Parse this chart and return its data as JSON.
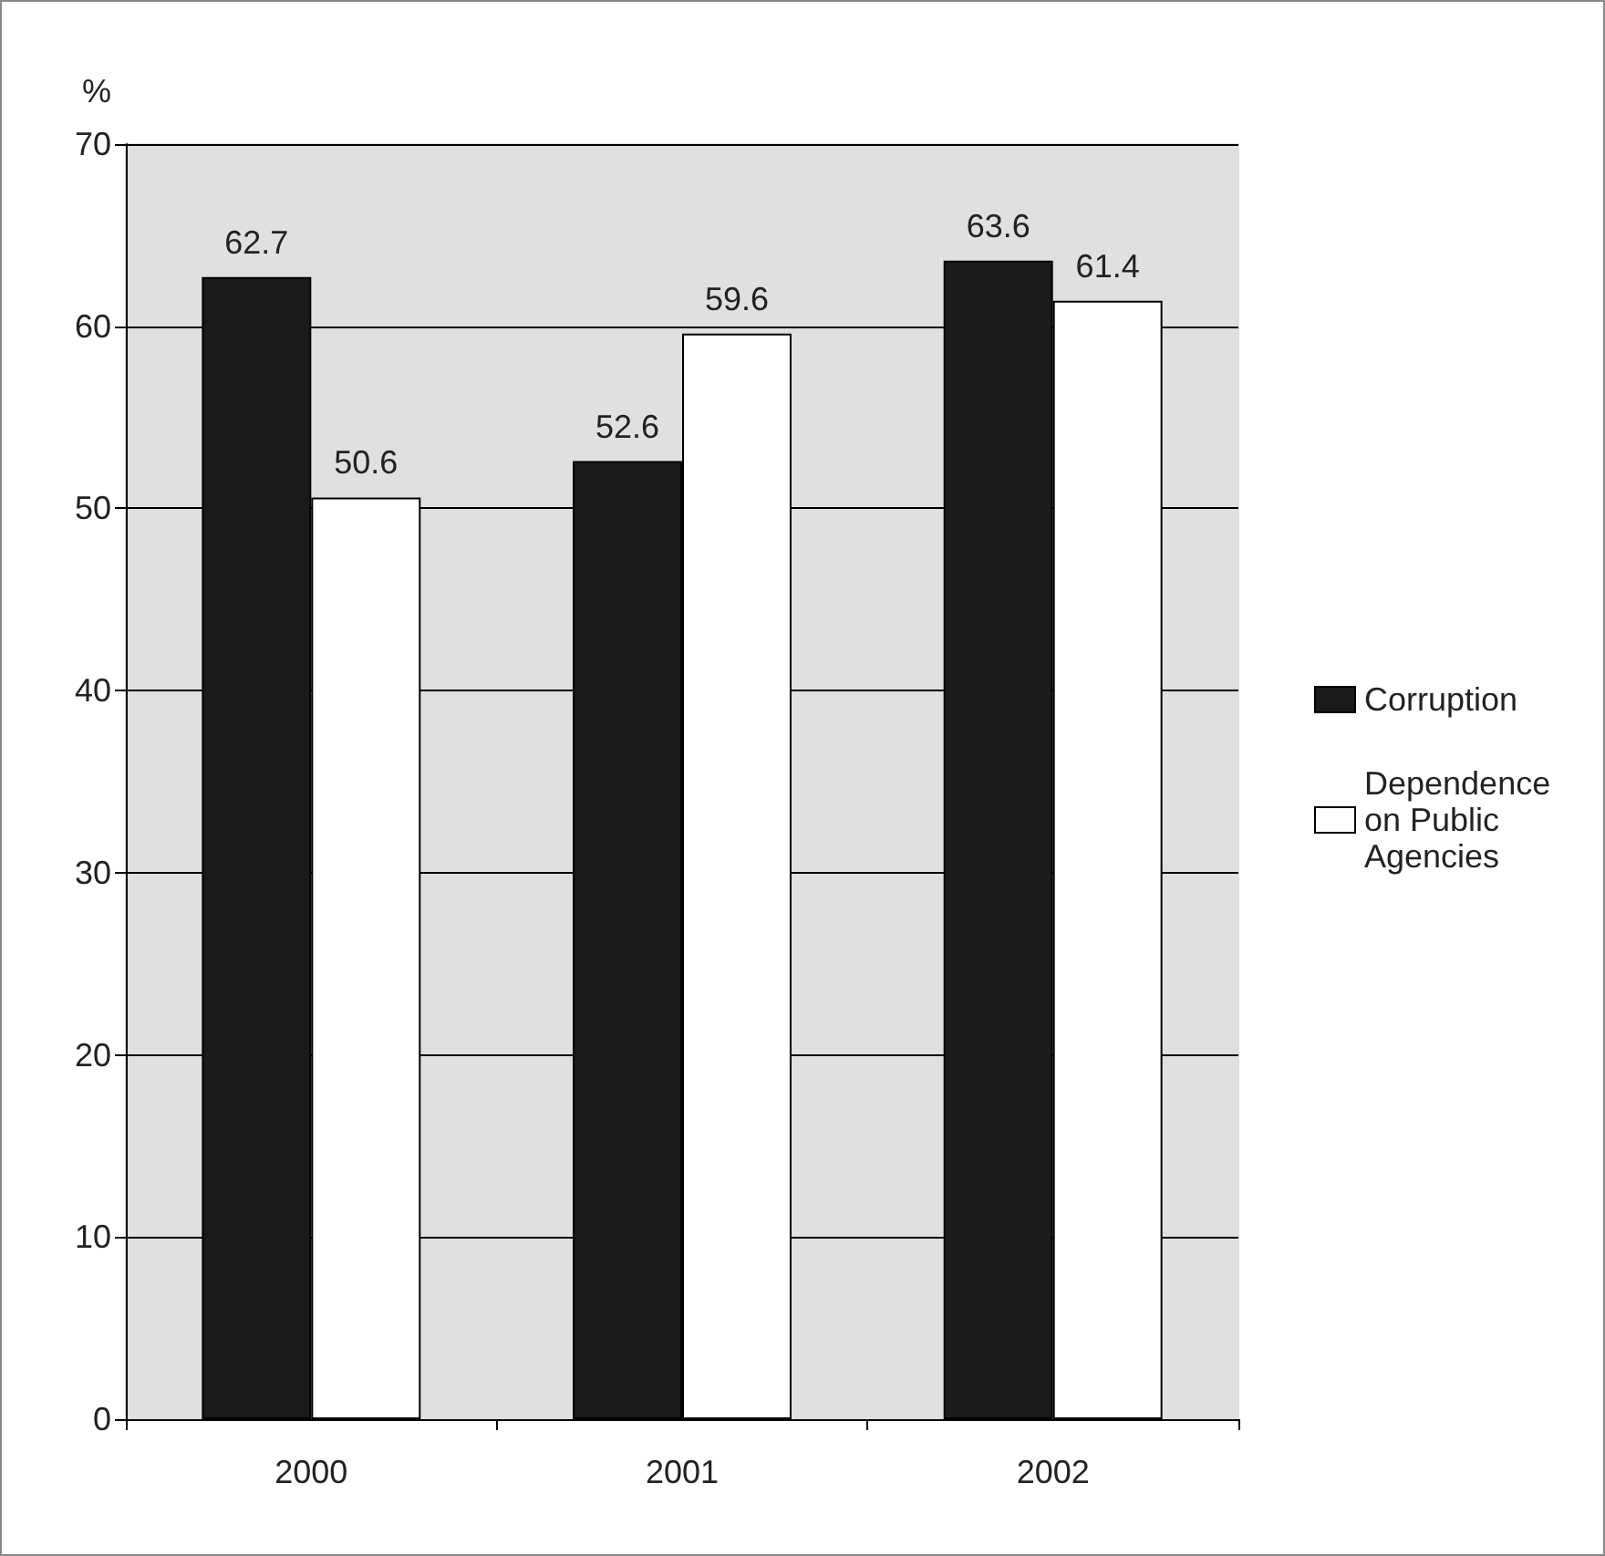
{
  "chart_data": {
    "type": "bar",
    "ylabel": "%",
    "categories": [
      "2000",
      "2001",
      "2002"
    ],
    "series": [
      {
        "name": "Corruption",
        "color": "#1a1a1a",
        "values": [
          62.7,
          52.6,
          63.6
        ]
      },
      {
        "name": "Dependence on Public Agencies",
        "color": "#ffffff",
        "values": [
          50.6,
          59.6,
          61.4
        ]
      }
    ],
    "ylim": [
      0,
      70
    ],
    "yticks": [
      0,
      10,
      20,
      30,
      40,
      50,
      60,
      70
    ],
    "grid": "y",
    "legend": "right",
    "data_labels": true
  }
}
